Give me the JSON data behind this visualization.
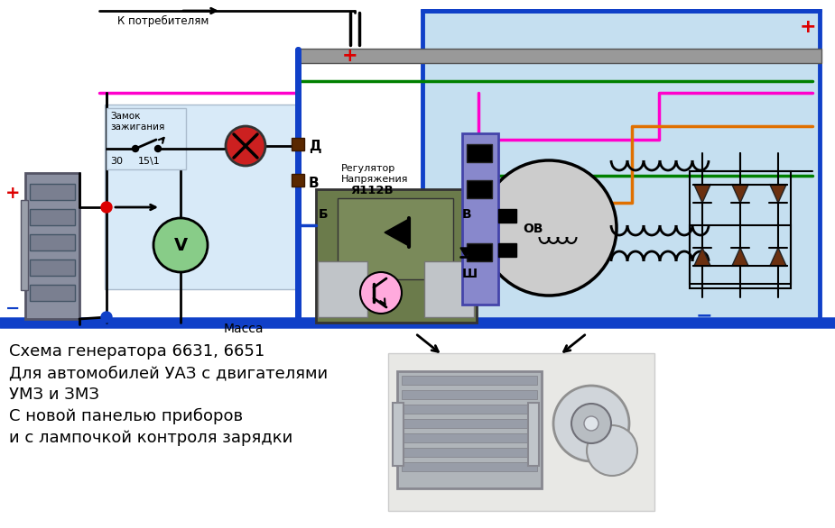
{
  "bg": "#ffffff",
  "light_blue": "#c5dff0",
  "panel_blue": "#d8eaf8",
  "blue": "#1040c8",
  "green": "#008000",
  "magenta": "#ff00cc",
  "orange": "#e07000",
  "red": "#dd0000",
  "brown_diode": "#6b3010",
  "gray_bus": "#909090",
  "caption_lines": [
    "Схема генератора 6631, 6651",
    "Для автомобилей УАЗ с двигателями",
    "УМЗ и ЗМЗ",
    "С новой панелью приборов",
    "и с лампочкой контроля зарядки"
  ]
}
